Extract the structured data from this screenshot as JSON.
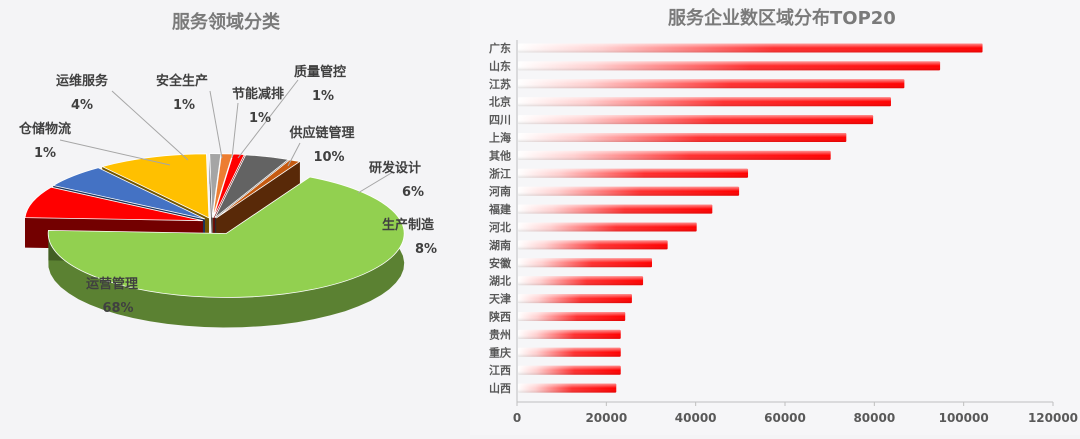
{
  "chart_data": [
    {
      "type": "pie",
      "title": "服务领域分类",
      "slices": [
        {
          "label": "运营管理",
          "pct_label": "68%",
          "value": 68,
          "color": "#92d050"
        },
        {
          "label": "生产制造",
          "pct_label": "8%",
          "value": 8,
          "color": "#ff0000"
        },
        {
          "label": "研发设计",
          "pct_label": "6%",
          "value": 6,
          "color": "#4472c4"
        },
        {
          "label": "供应链管理",
          "pct_label": "10%",
          "value": 10,
          "color": "#ffc000"
        },
        {
          "label": "质量管控",
          "pct_label": "1%",
          "value": 1,
          "color": "#a5a5a5"
        },
        {
          "label": "节能减排",
          "pct_label": "1%",
          "value": 1,
          "color": "#ed7d31"
        },
        {
          "label": "安全生产",
          "pct_label": "1%",
          "value": 1,
          "color": "#ff0000"
        },
        {
          "label": "运维服务",
          "pct_label": "4%",
          "value": 4,
          "color": "#636363"
        },
        {
          "label": "仓储物流",
          "pct_label": "1%",
          "value": 1,
          "color": "#c55a11"
        }
      ]
    },
    {
      "type": "bar",
      "orientation": "horizontal",
      "title": "服务企业数区域分布TOP20",
      "categories": [
        "广东",
        "山东",
        "江苏",
        "北京",
        "四川",
        "上海",
        "其他",
        "浙江",
        "河南",
        "福建",
        "河北",
        "湖南",
        "安徽",
        "湖北",
        "天津",
        "陕西",
        "贵州",
        "重庆",
        "江西",
        "山西"
      ],
      "values": [
        104000,
        94500,
        86500,
        83500,
        79500,
        73500,
        70000,
        51500,
        49500,
        43500,
        40000,
        33500,
        30000,
        28000,
        25500,
        24000,
        23000,
        23000,
        23000,
        22000
      ],
      "xlim": [
        0,
        120000
      ],
      "xticks": [
        "0",
        "20000",
        "40000",
        "60000",
        "80000",
        "100000",
        "120000"
      ],
      "bar_color": "#ff0000",
      "grid": false
    }
  ]
}
